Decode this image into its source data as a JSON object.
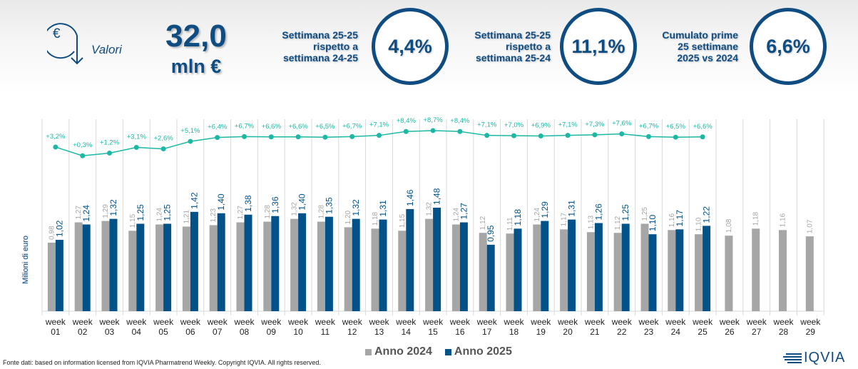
{
  "header": {
    "icon": "euro-down-arrow-icon",
    "label": "Valori",
    "total_value": "32,0",
    "total_unit": "mln €"
  },
  "kpis": [
    {
      "label_lines": [
        "Settimana 25-25",
        "rispetto a",
        "settimana 24-25"
      ],
      "value": "4,4%"
    },
    {
      "label_lines": [
        "Settimana 25-25",
        "rispetto a",
        "settimana 25-24"
      ],
      "value": "11,1%"
    },
    {
      "label_lines": [
        "Cumulato prime",
        "25 settimane",
        "2025 vs 2024"
      ],
      "value": "6,6%"
    }
  ],
  "colors": {
    "brand": "#0f4c81",
    "series_2024": "#a6a6a6",
    "series_2025": "#02528a",
    "growth_line": "#1bb8a4",
    "grid": "#d9d9d9"
  },
  "chart_data": {
    "type": "bar",
    "title": "",
    "xlabel": "",
    "ylabel": "Milioni di euro",
    "categories": [
      "week 01",
      "week 02",
      "week 03",
      "week 04",
      "week 05",
      "week 06",
      "week 07",
      "week 08",
      "week 09",
      "week 10",
      "week 11",
      "week 12",
      "week 13",
      "week 14",
      "week 15",
      "week 16",
      "week 17",
      "week 18",
      "week 19",
      "week 20",
      "week 21",
      "week 22",
      "week 23",
      "week 24",
      "week 25",
      "week 26",
      "week 27",
      "week 28",
      "week 29"
    ],
    "series": [
      {
        "name": "Anno 2024",
        "values": [
          0.98,
          1.27,
          1.29,
          1.15,
          1.24,
          1.21,
          1.23,
          1.27,
          1.28,
          1.32,
          1.28,
          1.2,
          1.18,
          1.15,
          1.32,
          1.24,
          1.12,
          1.11,
          1.24,
          1.17,
          1.13,
          1.12,
          1.25,
          1.16,
          1.1,
          1.08,
          1.18,
          1.16,
          1.07
        ]
      },
      {
        "name": "Anno 2025",
        "values": [
          1.02,
          1.24,
          1.32,
          1.25,
          1.25,
          1.42,
          1.4,
          1.38,
          1.36,
          1.4,
          1.35,
          1.32,
          1.31,
          1.46,
          1.48,
          1.27,
          0.95,
          1.18,
          1.29,
          1.31,
          1.26,
          1.25,
          1.1,
          1.17,
          1.22,
          null,
          null,
          null,
          null
        ]
      }
    ],
    "cumulative_growth": {
      "name": "Crescita cumulata 2025 vs 2024",
      "type": "line",
      "values": [
        3.2,
        0.3,
        1.2,
        3.1,
        2.6,
        5.1,
        6.4,
        6.7,
        6.6,
        6.6,
        6.5,
        6.7,
        7.1,
        8.4,
        8.7,
        8.4,
        7.1,
        7.0,
        6.9,
        7.1,
        7.3,
        7.6,
        6.7,
        6.5,
        6.6
      ],
      "labels": [
        "+3,2%",
        "+0,3%",
        "+1,2%",
        "+3,1%",
        "+2,6%",
        "+5,1%",
        "+6,4%",
        "+6,7%",
        "+6,6%",
        "+6,6%",
        "+6,5%",
        "+6,7%",
        "+7,1%",
        "+8,4%",
        "+8,7%",
        "+8,4%",
        "+7,1%",
        "+7,0%",
        "+6,9%",
        "+7,1%",
        "+7,3%",
        "+7,6%",
        "+6,7%",
        "+6,5%",
        "+6,6%"
      ]
    },
    "ylim": [
      0,
      1.5
    ],
    "grid": "vertical",
    "legend": "bottom-center",
    "legend_entries": [
      "Anno 2024",
      "Anno 2025"
    ]
  },
  "footer": {
    "source": "Fonte dati: based on information licensed from IQVIA Pharmatrend Weekly. Copyright IQVIA. All rights reserved.",
    "logo_text": "IQVIA"
  }
}
